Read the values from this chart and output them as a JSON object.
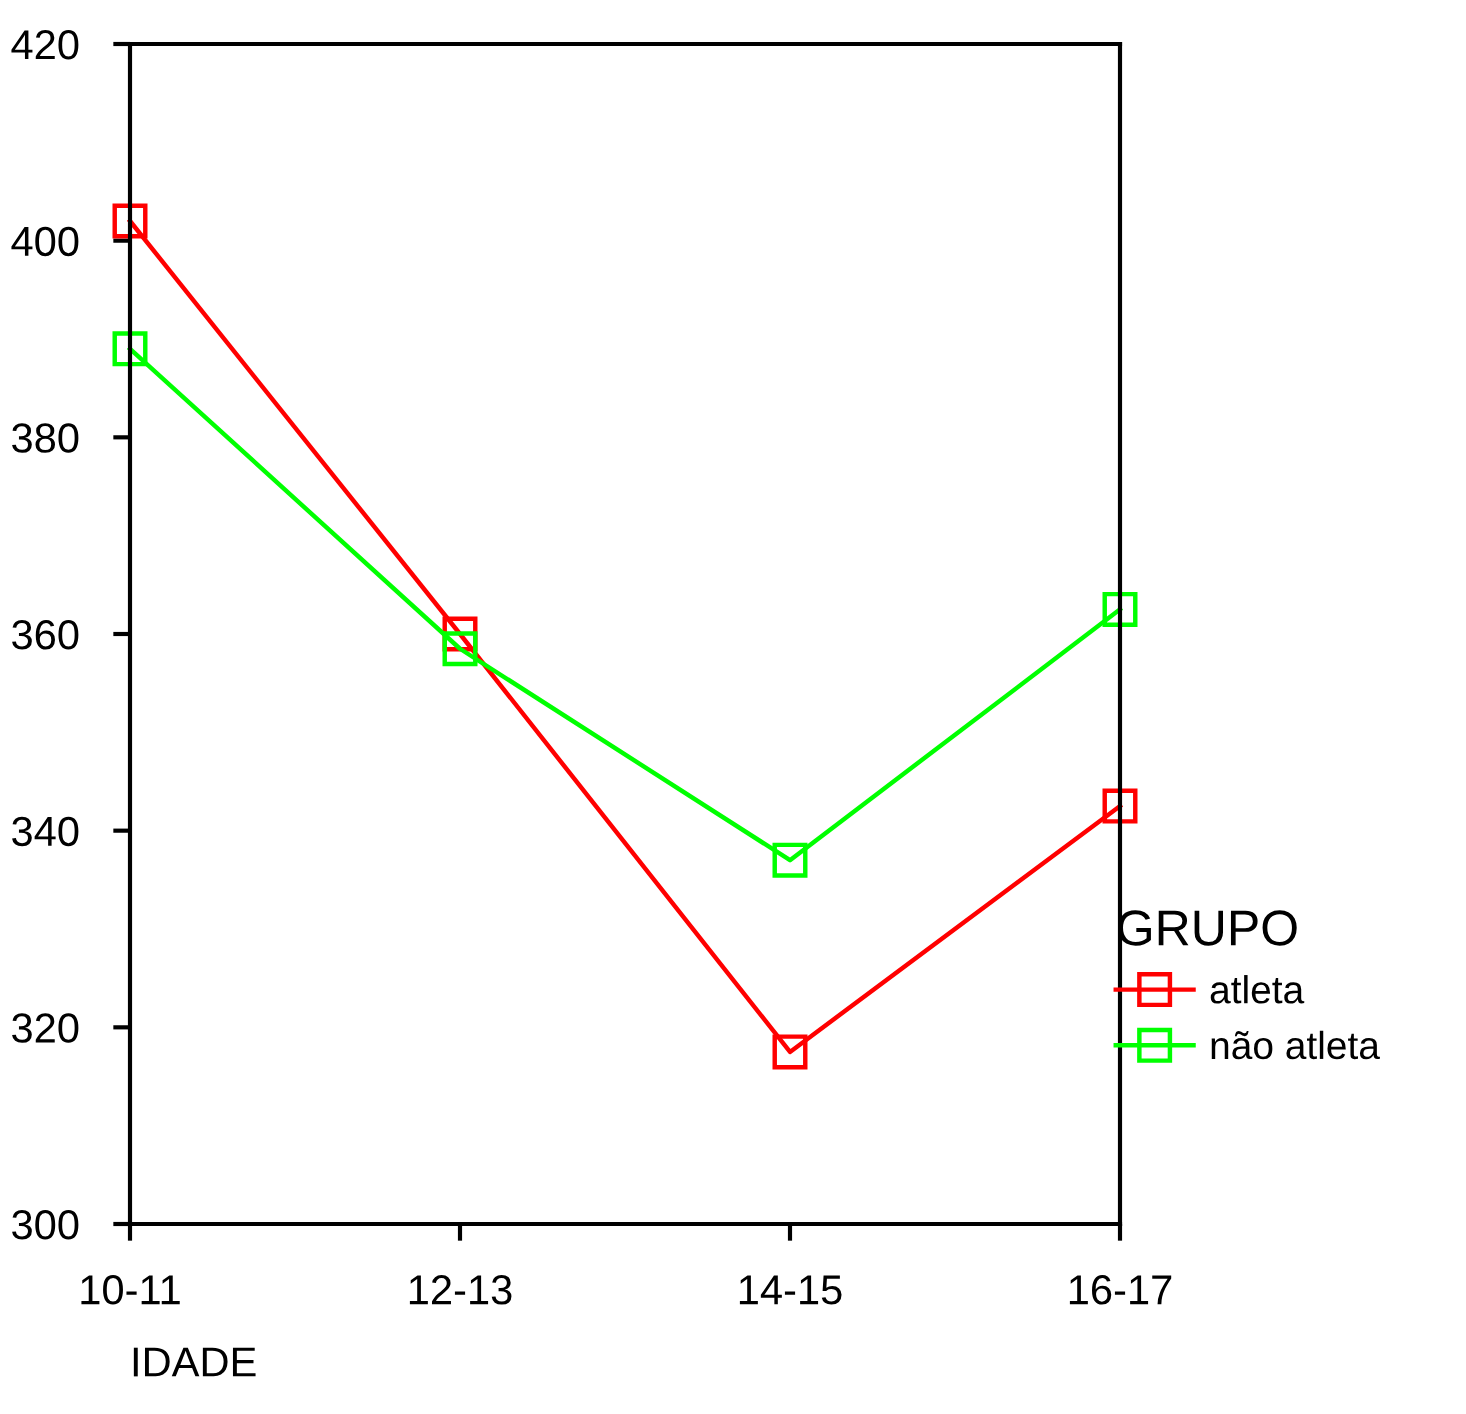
{
  "chart_data": {
    "type": "line",
    "xlabel": "IDADE",
    "legend_title": "GRUPO",
    "categories": [
      "10-11",
      "12-13",
      "14-15",
      "16-17"
    ],
    "series": [
      {
        "name": "atleta",
        "color": "#ff0000",
        "values": [
          402,
          360,
          317.5,
          342.5
        ]
      },
      {
        "name": "não atleta",
        "color": "#00ff00",
        "values": [
          389,
          358.5,
          337,
          362.5
        ]
      }
    ],
    "ylim": [
      300,
      420
    ],
    "yticks": [
      300,
      320,
      340,
      360,
      380,
      400,
      420
    ],
    "grid": false,
    "legend": "right",
    "marker": "square",
    "line_style": "solid"
  }
}
